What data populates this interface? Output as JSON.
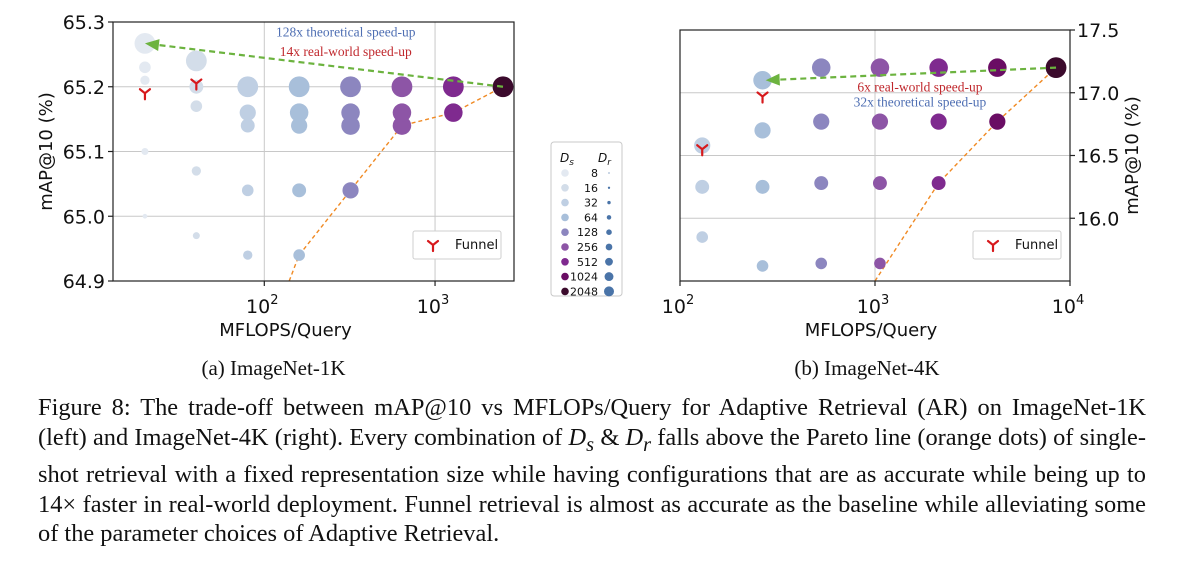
{
  "colors": {
    "ds_scale": [
      "#e3e9f1",
      "#d3dde9",
      "#bfcfe3",
      "#a8bfda",
      "#8c86bf",
      "#8d55a6",
      "#7f2a8f",
      "#6a0d64",
      "#3b0a2c"
    ],
    "grid": "#c8c8c8",
    "funnel": "#d7191c",
    "pareto": "#f08a24",
    "arrow": "#6cb33f",
    "theoretical_text": "#4f6fb3",
    "realworld_text": "#c0282d"
  },
  "legend": {
    "ds_header": "D",
    "ds_sub": "s",
    "dr_header": "D",
    "dr_sub": "r",
    "sizes": [
      "8",
      "16",
      "32",
      "64",
      "128",
      "256",
      "512",
      "1024",
      "2048"
    ]
  },
  "chart_data": [
    {
      "type": "scatter",
      "subtitle": "(a) ImageNet-1K",
      "xlabel": "MFLOPS/Query",
      "ylabel": "mAP@10 (%)",
      "xscale": "log",
      "xlim": [
        13,
        2900
      ],
      "ylim": [
        64.9,
        65.3
      ],
      "xticks": [
        {
          "value": 100,
          "base": "10",
          "exp": "2"
        },
        {
          "value": 1000,
          "base": "10",
          "exp": "3"
        }
      ],
      "yticks": [
        "64.9",
        "65.0",
        "65.1",
        "65.2",
        "65.3"
      ],
      "yaxis_side": "left",
      "grid": true,
      "legend_label": "Funnel",
      "legend_position": "lower-right",
      "ds_values": [
        8,
        16,
        32,
        64,
        128,
        256,
        512,
        1024,
        2048
      ],
      "points": [
        {
          "ds": 8,
          "dr": 16,
          "x": 20,
          "y": 65.0
        },
        {
          "ds": 8,
          "dr": 32,
          "x": 20,
          "y": 65.1
        },
        {
          "ds": 8,
          "dr": 64,
          "x": 20,
          "y": 65.21
        },
        {
          "ds": 8,
          "dr": 128,
          "x": 20,
          "y": 65.23
        },
        {
          "ds": 8,
          "dr": 2048,
          "x": 20,
          "y": 65.267
        },
        {
          "ds": 16,
          "dr": 32,
          "x": 40,
          "y": 64.97
        },
        {
          "ds": 16,
          "dr": 64,
          "x": 40,
          "y": 65.07
        },
        {
          "ds": 16,
          "dr": 128,
          "x": 40,
          "y": 65.17
        },
        {
          "ds": 16,
          "dr": 256,
          "x": 40,
          "y": 65.2
        },
        {
          "ds": 16,
          "dr": 2048,
          "x": 40,
          "y": 65.24
        },
        {
          "ds": 32,
          "dr": 64,
          "x": 80,
          "y": 64.94
        },
        {
          "ds": 32,
          "dr": 128,
          "x": 80,
          "y": 65.04
        },
        {
          "ds": 32,
          "dr": 256,
          "x": 80,
          "y": 65.14
        },
        {
          "ds": 32,
          "dr": 512,
          "x": 80,
          "y": 65.16
        },
        {
          "ds": 32,
          "dr": 2048,
          "x": 80,
          "y": 65.2
        },
        {
          "ds": 64,
          "dr": 128,
          "x": 160,
          "y": 64.94
        },
        {
          "ds": 64,
          "dr": 256,
          "x": 160,
          "y": 65.04
        },
        {
          "ds": 64,
          "dr": 512,
          "x": 160,
          "y": 65.14
        },
        {
          "ds": 64,
          "dr": 1024,
          "x": 160,
          "y": 65.16
        },
        {
          "ds": 64,
          "dr": 2048,
          "x": 160,
          "y": 65.2
        },
        {
          "ds": 128,
          "dr": 512,
          "x": 320,
          "y": 65.04
        },
        {
          "ds": 128,
          "dr": 1024,
          "x": 320,
          "y": 65.14
        },
        {
          "ds": 128,
          "dr": 1024,
          "x": 320,
          "y": 65.16
        },
        {
          "ds": 128,
          "dr": 2048,
          "x": 320,
          "y": 65.2
        },
        {
          "ds": 256,
          "dr": 1024,
          "x": 640,
          "y": 65.14
        },
        {
          "ds": 256,
          "dr": 1024,
          "x": 640,
          "y": 65.16
        },
        {
          "ds": 256,
          "dr": 2048,
          "x": 640,
          "y": 65.2
        },
        {
          "ds": 512,
          "dr": 1024,
          "x": 1280,
          "y": 65.16
        },
        {
          "ds": 512,
          "dr": 2048,
          "x": 1280,
          "y": 65.2
        },
        {
          "ds": 2048,
          "dr": 2048,
          "x": 2500,
          "y": 65.2
        }
      ],
      "funnel_points": [
        {
          "x": 20,
          "y": 65.19
        },
        {
          "x": 40,
          "y": 65.205
        }
      ],
      "pareto": [
        {
          "x": 140,
          "y": 64.89
        },
        {
          "x": 160,
          "y": 64.94
        },
        {
          "x": 320,
          "y": 65.04
        },
        {
          "x": 640,
          "y": 65.14
        },
        {
          "x": 1280,
          "y": 65.16
        },
        {
          "x": 2500,
          "y": 65.2
        }
      ],
      "arrow": {
        "from": {
          "x": 2500,
          "y": 65.2
        },
        "to": {
          "x": 20,
          "y": 65.267
        }
      },
      "annotations": [
        {
          "text": "128x theoretical speed-up",
          "x": 300,
          "y": 65.285,
          "kind": "theoretical"
        },
        {
          "text": "14x real-world speed-up",
          "x": 300,
          "y": 65.255,
          "kind": "realworld"
        }
      ]
    },
    {
      "type": "scatter",
      "subtitle": "(b) ImageNet-4K",
      "xlabel": "MFLOPS/Query",
      "ylabel": "mAP@10 (%)",
      "xscale": "log",
      "xlim": [
        100,
        10000
      ],
      "ylim": [
        15.5,
        17.5
      ],
      "xticks": [
        {
          "value": 100,
          "base": "10",
          "exp": "2"
        },
        {
          "value": 1000,
          "base": "10",
          "exp": "3"
        },
        {
          "value": 10000,
          "base": "10",
          "exp": "4"
        }
      ],
      "yticks": [
        "16.0",
        "16.5",
        "17.0",
        "17.5"
      ],
      "yaxis_side": "right",
      "grid": true,
      "legend_label": "Funnel",
      "legend_position": "lower-right",
      "ds_values": [
        8,
        16,
        32,
        64,
        128,
        256,
        512,
        1024,
        2048
      ],
      "points": [
        {
          "ds": 32,
          "dr": 512,
          "x": 130,
          "y": 16.58
        },
        {
          "ds": 32,
          "dr": 256,
          "x": 130,
          "y": 16.25
        },
        {
          "ds": 32,
          "dr": 128,
          "x": 130,
          "y": 15.85
        },
        {
          "ds": 64,
          "dr": 1024,
          "x": 265,
          "y": 17.1
        },
        {
          "ds": 64,
          "dr": 512,
          "x": 265,
          "y": 16.7
        },
        {
          "ds": 64,
          "dr": 256,
          "x": 265,
          "y": 16.25
        },
        {
          "ds": 64,
          "dr": 128,
          "x": 265,
          "y": 15.62
        },
        {
          "ds": 128,
          "dr": 1024,
          "x": 530,
          "y": 17.2
        },
        {
          "ds": 128,
          "dr": 512,
          "x": 530,
          "y": 16.77
        },
        {
          "ds": 128,
          "dr": 256,
          "x": 530,
          "y": 16.28
        },
        {
          "ds": 128,
          "dr": 128,
          "x": 530,
          "y": 15.64
        },
        {
          "ds": 256,
          "dr": 1024,
          "x": 1060,
          "y": 17.2
        },
        {
          "ds": 256,
          "dr": 512,
          "x": 1060,
          "y": 16.77
        },
        {
          "ds": 256,
          "dr": 256,
          "x": 1060,
          "y": 16.28
        },
        {
          "ds": 256,
          "dr": 128,
          "x": 1060,
          "y": 15.64
        },
        {
          "ds": 512,
          "dr": 1024,
          "x": 2120,
          "y": 17.2
        },
        {
          "ds": 512,
          "dr": 512,
          "x": 2120,
          "y": 16.77
        },
        {
          "ds": 512,
          "dr": 256,
          "x": 2120,
          "y": 16.28
        },
        {
          "ds": 1024,
          "dr": 1024,
          "x": 4240,
          "y": 17.2
        },
        {
          "ds": 1024,
          "dr": 512,
          "x": 4240,
          "y": 16.77
        },
        {
          "ds": 2048,
          "dr": 2048,
          "x": 8480,
          "y": 17.2
        }
      ],
      "funnel_points": [
        {
          "x": 130,
          "y": 16.55
        },
        {
          "x": 265,
          "y": 16.97
        }
      ],
      "pareto": [
        {
          "x": 1000,
          "y": 15.5
        },
        {
          "x": 2120,
          "y": 16.28
        },
        {
          "x": 4240,
          "y": 16.77
        },
        {
          "x": 8480,
          "y": 17.2
        }
      ],
      "arrow": {
        "from": {
          "x": 8480,
          "y": 17.2
        },
        "to": {
          "x": 275,
          "y": 17.1
        }
      },
      "annotations": [
        {
          "text": "6x real-world speed-up",
          "x": 1700,
          "y": 17.05,
          "kind": "realworld"
        },
        {
          "text": "32x theoretical speed-up",
          "x": 1700,
          "y": 16.93,
          "kind": "theoretical"
        }
      ]
    }
  ],
  "caption": {
    "p1": "Figure 8: The trade-off between mAP@10 vs MFLOPs/Query for Adaptive Retrieval (AR) on ImageNet-1K (left) and ImageNet-4K (right). Every combination of ",
    "ds_var": "D",
    "ds_sub": "s",
    "amp": " & ",
    "dr_var": "D",
    "dr_sub": "r",
    "p2": " falls above the Pareto line (orange dots) of single-shot retrieval with a fixed representation size while having configurations that are as accurate while being up to ",
    "p3": "14×",
    "p4": " faster in real-world deployment. Funnel retrieval is almost as accurate as the baseline while alleviating some of the parameter choices of Adaptive Retrieval."
  }
}
